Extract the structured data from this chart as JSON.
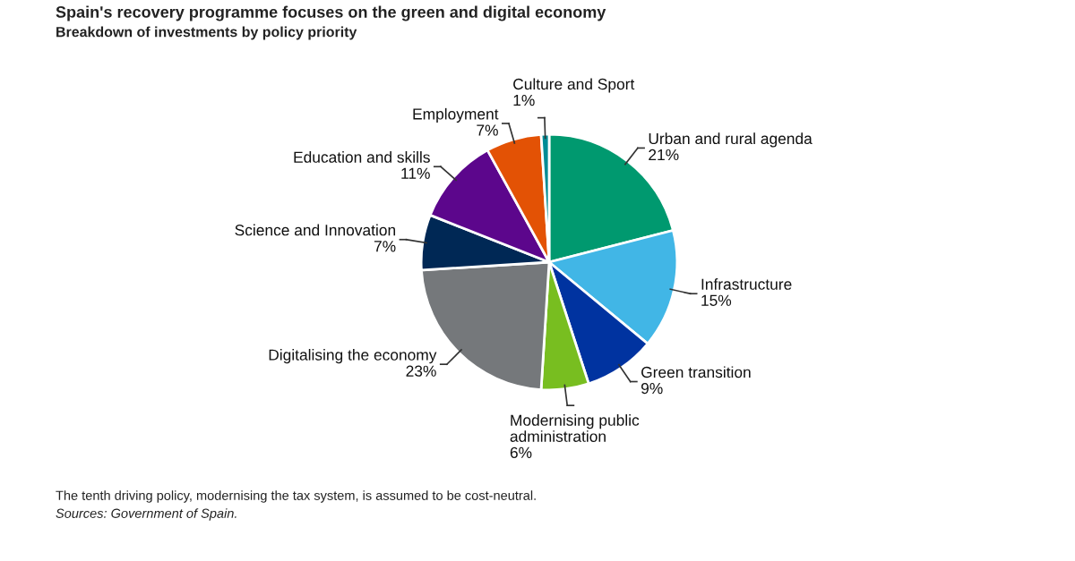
{
  "chart_data": {
    "type": "pie",
    "title": "Spain's recovery programme focuses on the green and digital economy",
    "subtitle": "Breakdown of investments by policy priority",
    "categories": [
      "Urban and rural agenda",
      "Infrastructure",
      "Green transition",
      "Modernising public administration",
      "Digitalising the economy",
      "Science and Innovation",
      "Education and skills",
      "Employment",
      "Culture and Sport"
    ],
    "values": [
      21,
      15,
      9,
      6,
      23,
      7,
      11,
      7,
      1
    ],
    "colors": [
      "#00996f",
      "#41b6e6",
      "#0033a0",
      "#78be20",
      "#75787b",
      "#002855",
      "#5c068c",
      "#e35205",
      "#008c95"
    ],
    "value_labels": [
      "21%",
      "15%",
      "9%",
      "6%",
      "23%",
      "7%",
      "11%",
      "7%",
      "1%"
    ],
    "annotations": [
      "The tenth driving policy, modernising the tax system, is assumed to be cost-neutral.",
      "Sources: Government of Spain."
    ]
  }
}
